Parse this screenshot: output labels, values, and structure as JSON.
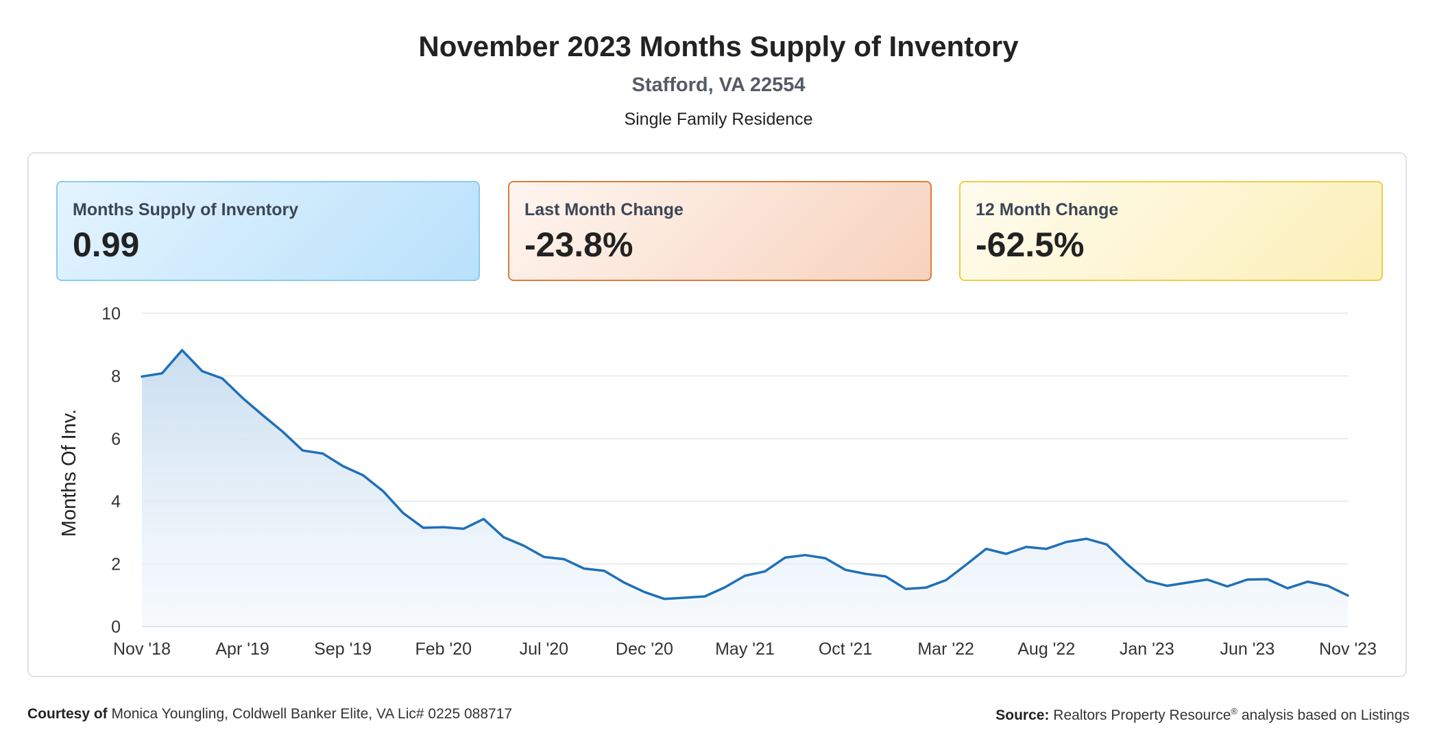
{
  "header": {
    "title": "November 2023 Months Supply of Inventory",
    "location": "Stafford, VA 22554",
    "property_type": "Single Family Residence"
  },
  "cards": [
    {
      "label": "Months Supply of Inventory",
      "value": "0.99"
    },
    {
      "label": "Last Month Change",
      "value": "-23.8%"
    },
    {
      "label": "12 Month Change",
      "value": "-62.5%"
    }
  ],
  "chart_data": {
    "type": "area",
    "ylabel": "Months Of Inv.",
    "ylim": [
      0,
      10
    ],
    "yticks": [
      "0",
      "2",
      "4",
      "6",
      "8",
      "10"
    ],
    "xtick_labels": [
      "Nov '18",
      "Apr '19",
      "Sep '19",
      "Feb '20",
      "Jul '20",
      "Dec '20",
      "May '21",
      "Oct '21",
      "Mar '22",
      "Aug '22",
      "Jan '23",
      "Jun '23",
      "Nov '23"
    ],
    "grid": true,
    "line_color": "#1f6fb8",
    "fill_color": "#cfe2f3",
    "x": [
      "Nov '18",
      "Dec '18",
      "Jan '19",
      "Feb '19",
      "Mar '19",
      "Apr '19",
      "May '19",
      "Jun '19",
      "Jul '19",
      "Aug '19",
      "Sep '19",
      "Oct '19",
      "Nov '19",
      "Dec '19",
      "Jan '20",
      "Feb '20",
      "Mar '20",
      "Apr '20",
      "May '20",
      "Jun '20",
      "Jul '20",
      "Aug '20",
      "Sep '20",
      "Oct '20",
      "Nov '20",
      "Dec '20",
      "Jan '21",
      "Feb '21",
      "Mar '21",
      "Apr '21",
      "May '21",
      "Jun '21",
      "Jul '21",
      "Aug '21",
      "Sep '21",
      "Oct '21",
      "Nov '21",
      "Dec '21",
      "Jan '22",
      "Feb '22",
      "Mar '22",
      "Apr '22",
      "May '22",
      "Jun '22",
      "Jul '22",
      "Aug '22",
      "Sep '22",
      "Oct '22",
      "Nov '22",
      "Dec '22",
      "Jan '23",
      "Feb '23",
      "Mar '23",
      "Apr '23",
      "May '23",
      "Jun '23",
      "Jul '23",
      "Aug '23",
      "Sep '23",
      "Oct '23",
      "Nov '23"
    ],
    "series": [
      {
        "values": [
          7.98,
          8.08,
          8.82,
          8.15,
          7.92,
          7.3,
          6.75,
          6.22,
          5.62,
          5.52,
          5.12,
          4.83,
          4.32,
          3.62,
          3.15,
          3.17,
          3.12,
          3.43,
          2.85,
          2.58,
          2.22,
          2.15,
          1.85,
          1.78,
          1.4,
          1.1,
          0.88,
          0.92,
          0.96,
          1.25,
          1.62,
          1.76,
          2.2,
          2.28,
          2.18,
          1.81,
          1.68,
          1.6,
          1.2,
          1.24,
          1.48,
          1.97,
          2.48,
          2.32,
          2.54,
          2.48,
          2.7,
          2.8,
          2.62,
          2.0,
          1.46,
          1.3,
          1.4,
          1.5,
          1.28,
          1.5,
          1.51,
          1.22,
          1.43,
          1.3,
          0.99
        ]
      }
    ]
  },
  "footer": {
    "courtesy_label": "Courtesy of",
    "courtesy_text": "Monica Youngling, Coldwell Banker Elite, VA Lic# 0225 088717",
    "source_label": "Source:",
    "source_text_1": "Realtors Property Resource",
    "source_sup": "®",
    "source_text_2": "analysis based on Listings"
  }
}
